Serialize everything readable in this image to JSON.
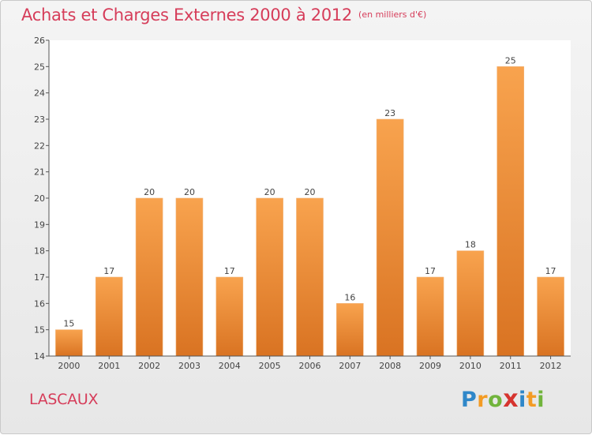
{
  "header": {
    "title": "Achats et Charges Externes 2000 à 2012",
    "unit": "(en milliers d'€)"
  },
  "footer": {
    "commune": "LASCAUX",
    "brand": [
      "P",
      "r",
      "o",
      "x",
      "i",
      "t",
      "i"
    ]
  },
  "colors": {
    "accent": "#d63d5a",
    "bar_light": "#f8a34e",
    "bar_dark": "#d97322"
  },
  "chart_data": {
    "type": "bar",
    "title": "Achats et Charges Externes 2000 à 2012",
    "subtitle": "(en milliers d'€)",
    "categories": [
      "2000",
      "2001",
      "2002",
      "2003",
      "2004",
      "2005",
      "2006",
      "2007",
      "2008",
      "2009",
      "2010",
      "2011",
      "2012"
    ],
    "values": [
      15,
      17,
      20,
      20,
      17,
      20,
      20,
      16,
      23,
      17,
      18,
      25,
      17
    ],
    "data_labels": [
      "15",
      "17",
      "20",
      "20",
      "17",
      "20",
      "20",
      "16",
      "23",
      "17",
      "18",
      "25",
      "17"
    ],
    "yticks": [
      "14",
      "15",
      "16",
      "17",
      "18",
      "19",
      "20",
      "21",
      "22",
      "23",
      "24",
      "25",
      "26"
    ],
    "ylim": [
      14,
      26
    ],
    "xlabel": "",
    "ylabel": "",
    "grid": false,
    "legend": "none"
  }
}
